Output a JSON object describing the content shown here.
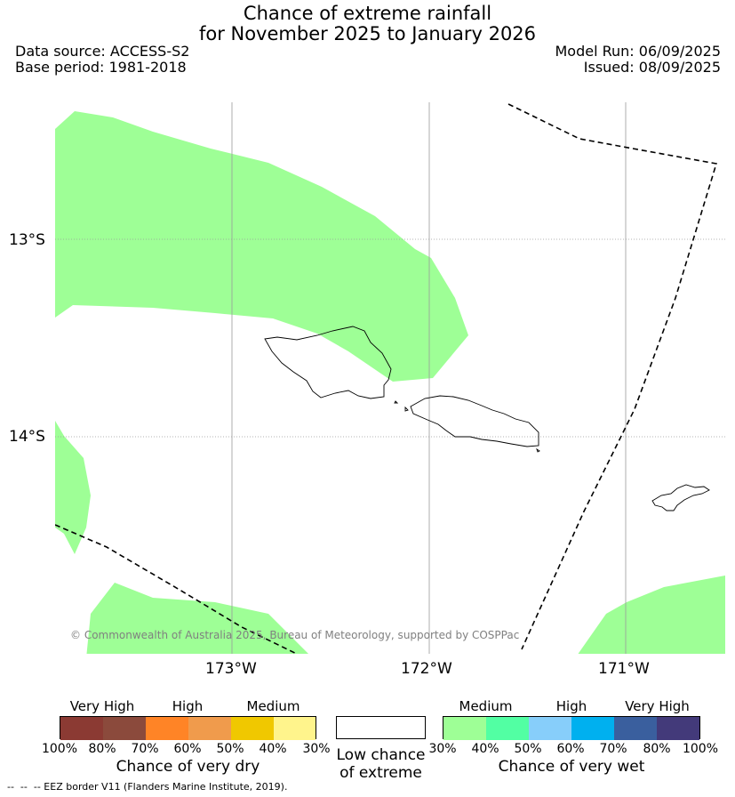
{
  "header": {
    "title_line1": "Chance of extreme rainfall",
    "title_line2": "for November 2025 to January 2026",
    "data_source": "Data source: ACCESS-S2",
    "base_period": "Base period: 1981-2018",
    "model_run": "Model Run: 06/09/2025",
    "issued": "Issued: 08/09/2025"
  },
  "map": {
    "lat_labels": [
      "13°S",
      "14°S"
    ],
    "lon_labels": [
      "173°W",
      "172°W",
      "171°W"
    ],
    "copyright": "© Commonwealth of Australia 2025, Bureau of Meteorology, supported by COSPPac",
    "colors": {
      "wet_medium_40": "#9eff96",
      "land_outline": "#000000",
      "eez_border": "#000000",
      "grid": "#9a9a9a"
    }
  },
  "legend": {
    "dry": {
      "groups": [
        "Very High",
        "High",
        "Medium"
      ],
      "ticks": [
        "100%",
        "80%",
        "70%",
        "60%",
        "50%",
        "40%",
        "30%"
      ],
      "colors": [
        "#8b3a33",
        "#8b4a3c",
        "#ff8426",
        "#f09b4c",
        "#f0c800",
        "#fff48c"
      ],
      "title": "Chance of very dry"
    },
    "neutral": {
      "line1": "Low chance",
      "line2": "of extreme",
      "color": "#ffffff"
    },
    "wet": {
      "groups": [
        "Medium",
        "High",
        "Very High"
      ],
      "ticks": [
        "30%",
        "40%",
        "50%",
        "60%",
        "70%",
        "80%",
        "100%"
      ],
      "colors": [
        "#9eff96",
        "#52ffa3",
        "#87cefa",
        "#00b0ef",
        "#3a5f9e",
        "#433a7a"
      ],
      "title": "Chance of very wet"
    }
  },
  "footnote": "--  --  -- EEZ border V11 (Flanders Marine Institute, 2019)."
}
